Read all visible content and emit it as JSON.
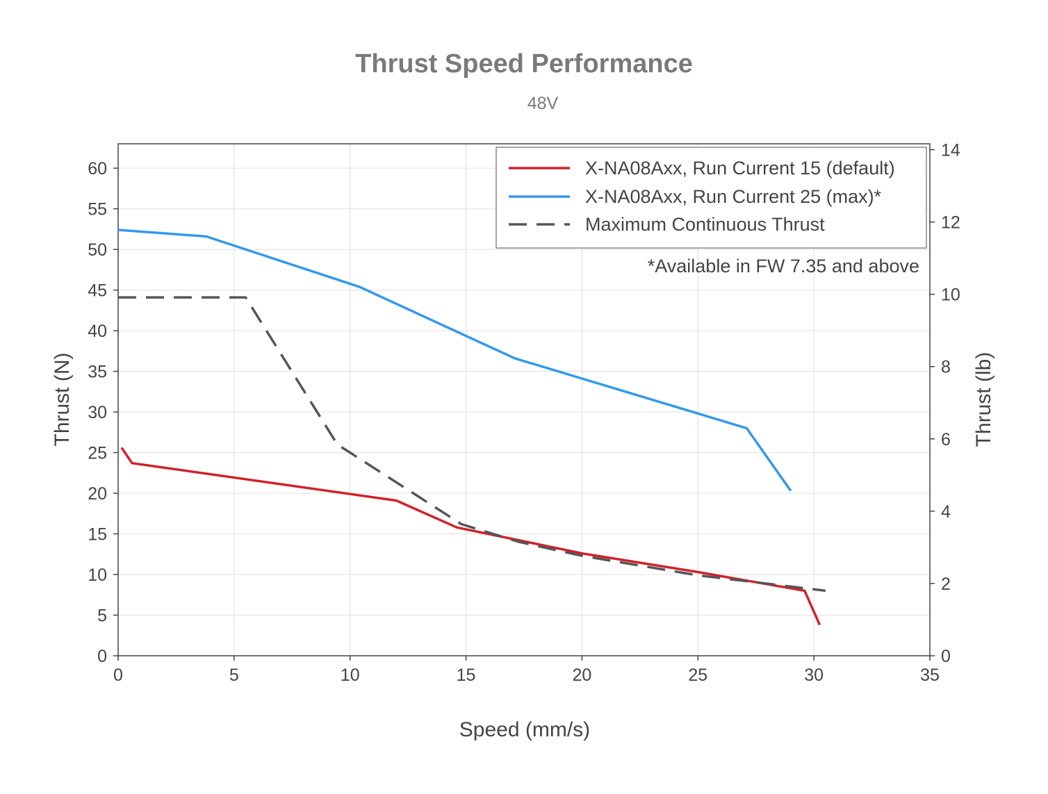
{
  "chart_data": {
    "type": "line",
    "title": "Thrust Speed Performance",
    "subtitle": "48V",
    "xlabel": "Speed (mm/s)",
    "ylabel": "Thrust (N)",
    "ylabel_right": "Thrust (lb)",
    "xlim": [
      0,
      35
    ],
    "ylim": [
      0,
      63
    ],
    "ylim_right": [
      0,
      14.163
    ],
    "x_ticks": [
      0,
      5,
      10,
      15,
      20,
      25,
      30,
      35
    ],
    "y_ticks": [
      0,
      5,
      10,
      15,
      20,
      25,
      30,
      35,
      40,
      45,
      50,
      55,
      60
    ],
    "y_ticks_right": [
      0,
      2,
      4,
      6,
      8,
      10,
      12,
      14
    ],
    "grid": true,
    "legend_position": "top-right",
    "annotation": "*Available in FW 7.35 and above",
    "series": [
      {
        "name": "X-NA08Axx, Run Current 15 (default)",
        "color": "#d0222a",
        "style": "solid",
        "x": [
          0.15,
          0.6,
          12,
          14.6,
          17.3,
          20,
          25,
          29.6,
          30.25
        ],
        "y": [
          25.6,
          23.7,
          19.1,
          15.8,
          14.2,
          12.6,
          10.3,
          8.0,
          3.8
        ]
      },
      {
        "name": "X-NA08Axx, Run Current 25 (max)*",
        "color": "#3399ee",
        "style": "solid",
        "x": [
          0,
          3.8,
          10.4,
          17.1,
          27.1,
          29
        ],
        "y": [
          52.4,
          51.6,
          45.4,
          36.6,
          28.0,
          20.3
        ]
      },
      {
        "name": "Maximum Continuous Thrust",
        "color": "#555555",
        "style": "dashed",
        "x": [
          0,
          5.5,
          9.45,
          14.8,
          17.3,
          20,
          25,
          30.5
        ],
        "y": [
          44.1,
          44.1,
          26.0,
          16.2,
          14.0,
          12.3,
          9.9,
          8.0
        ]
      }
    ]
  }
}
